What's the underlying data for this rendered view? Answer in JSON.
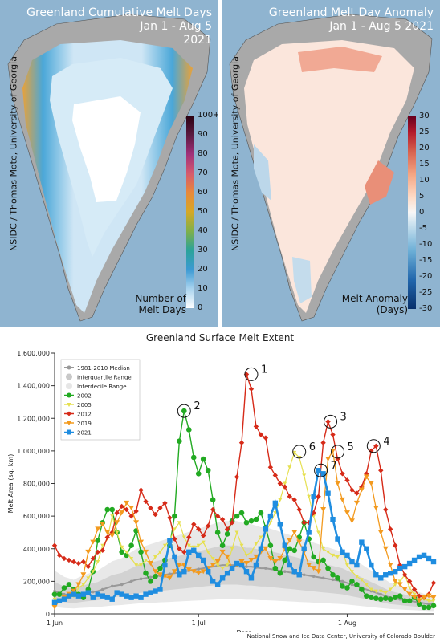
{
  "left_panel": {
    "title_line1": "Greenland Cumulative Melt Days",
    "title_line2": "Jan 1 - Aug 5",
    "title_line3": "2021",
    "credit": "NSIDC / Thomas Mote, University of Georgia",
    "colorbar_ticks": [
      "100+",
      "90",
      "80",
      "70",
      "60",
      "50",
      "40",
      "30",
      "20",
      "10",
      "0"
    ],
    "caption_line1": "Number of",
    "caption_line2": "Melt Days"
  },
  "right_panel": {
    "title_line1": "Greenland Melt Day Anomaly",
    "title_line2": "Jan 1 - Aug 5 2021",
    "credit": "NSIDC / Thomas Mote, University of Georgia",
    "colorbar_ticks": [
      "30",
      "25",
      "20",
      "15",
      "10",
      "5",
      "0",
      "-5",
      "-10",
      "-15",
      "-20",
      "-25",
      "-30"
    ],
    "caption_line1": "Melt Anomaly",
    "caption_line2": "(Days)"
  },
  "colors": {
    "ocean": "#8fb4d0",
    "land": "#a8a8a8",
    "ice": "#e6f2fa",
    "s2002": "#22aa22",
    "s2005": "#e6e050",
    "s2012": "#d62a18",
    "s2019": "#f39a1e",
    "s2021": "#1f8de0",
    "median": "#999999"
  },
  "chart_data": {
    "type": "line",
    "title": "Greenland Surface Melt Extent",
    "xlabel": "Date",
    "ylabel": "Melt Area (sq. km)",
    "ylim": [
      0,
      1600000
    ],
    "yticks": [
      "0",
      "200,000",
      "400,000",
      "600,000",
      "800,000",
      "1,000,000",
      "1,200,000",
      "1,400,000",
      "1,600,000"
    ],
    "xticks": [
      {
        "label": "1 Jun",
        "day": 0
      },
      {
        "label": "1 Jul",
        "day": 30
      },
      {
        "label": "1 Aug",
        "day": 61
      }
    ],
    "xrange": [
      0,
      79
    ],
    "legend": [
      "1981-2010 Median",
      "Interquartile Range",
      "Interdecile Range",
      "2002",
      "2005",
      "2012",
      "2019",
      "2021"
    ],
    "legend_position": "top-left",
    "annotations": [
      {
        "label": "1",
        "day": 41,
        "value": 1470000
      },
      {
        "label": "2",
        "day": 27,
        "value": 1245000
      },
      {
        "label": "3",
        "day": 57.5,
        "value": 1180000
      },
      {
        "label": "4",
        "day": 66.5,
        "value": 1030000
      },
      {
        "label": "5",
        "day": 59,
        "value": 995000
      },
      {
        "label": "6",
        "day": 51,
        "value": 995000
      },
      {
        "label": "7",
        "day": 55.5,
        "value": 880000
      }
    ],
    "source": "National Snow and Ice Data Center, University of Colorado Boulder",
    "median": [
      140000,
      130000,
      120000,
      115000,
      110000,
      118000,
      125000,
      130000,
      135000,
      140000,
      150000,
      160000,
      170000,
      175000,
      180000,
      190000,
      200000,
      210000,
      215000,
      220000,
      225000,
      230000,
      235000,
      240000,
      245000,
      250000,
      255000,
      260000,
      265000,
      270000,
      275000,
      280000,
      285000,
      290000,
      295000,
      300000,
      300000,
      300000,
      300000,
      295000,
      290000,
      290000,
      285000,
      280000,
      280000,
      275000,
      270000,
      265000,
      260000,
      255000,
      250000,
      245000,
      240000,
      235000,
      230000,
      225000,
      220000,
      215000,
      210000,
      205000,
      200000,
      190000,
      180000,
      170000,
      160000,
      150000,
      140000,
      130000,
      120000,
      110000,
      100000,
      95000,
      90000,
      85000,
      80000,
      75000,
      70000,
      65000,
      60000,
      60000
    ],
    "series": [
      {
        "name": "2002",
        "values": [
          120000,
          120000,
          160000,
          180000,
          150000,
          120000,
          100000,
          150000,
          260000,
          450000,
          560000,
          640000,
          640000,
          500000,
          380000,
          360000,
          420000,
          510000,
          380000,
          250000,
          200000,
          230000,
          280000,
          330000,
          420000,
          600000,
          1060000,
          1245000,
          1130000,
          960000,
          860000,
          950000,
          880000,
          700000,
          500000,
          420000,
          490000,
          570000,
          600000,
          620000,
          560000,
          570000,
          580000,
          620000,
          530000,
          420000,
          280000,
          250000,
          330000,
          400000,
          390000,
          470000,
          560000,
          460000,
          350000,
          320000,
          330000,
          280000,
          240000,
          220000,
          170000,
          160000,
          200000,
          180000,
          150000,
          110000,
          100000,
          95000,
          90000,
          95000,
          90000,
          100000,
          110000,
          80000,
          80000,
          100000,
          60000,
          40000,
          40000,
          50000
        ]
      },
      {
        "name": "2005",
        "values": [
          90000,
          80000,
          90000,
          100000,
          110000,
          160000,
          180000,
          220000,
          260000,
          320000,
          420000,
          460000,
          600000,
          500000,
          410000,
          380000,
          340000,
          300000,
          300000,
          330000,
          310000,
          350000,
          380000,
          420000,
          450000,
          520000,
          560000,
          470000,
          420000,
          410000,
          420000,
          440000,
          380000,
          340000,
          300000,
          280000,
          300000,
          400000,
          500000,
          420000,
          360000,
          380000,
          430000,
          470000,
          500000,
          560000,
          620000,
          700000,
          800000,
          900000,
          990000,
          960000,
          850000,
          720000,
          600000,
          500000,
          400000,
          380000,
          360000,
          350000,
          380000,
          300000,
          260000,
          230000,
          210000,
          180000,
          150000,
          140000,
          140000,
          130000,
          150000,
          180000,
          200000,
          240000,
          160000,
          120000,
          100000,
          90000,
          80000,
          80000
        ]
      },
      {
        "name": "2012",
        "values": [
          420000,
          360000,
          340000,
          330000,
          320000,
          310000,
          320000,
          290000,
          340000,
          380000,
          390000,
          470000,
          500000,
          620000,
          660000,
          640000,
          600000,
          630000,
          760000,
          690000,
          650000,
          610000,
          650000,
          680000,
          590000,
          460000,
          400000,
          380000,
          470000,
          550000,
          520000,
          480000,
          540000,
          640000,
          600000,
          580000,
          520000,
          560000,
          840000,
          1050000,
          1470000,
          1380000,
          1150000,
          1100000,
          1080000,
          900000,
          850000,
          800000,
          780000,
          720000,
          700000,
          640000,
          560000,
          560000,
          620000,
          720000,
          1050000,
          1180000,
          1100000,
          950000,
          860000,
          820000,
          760000,
          740000,
          780000,
          860000,
          1000000,
          1030000,
          880000,
          640000,
          520000,
          420000,
          300000,
          240000,
          200000,
          150000,
          110000,
          100000,
          120000,
          190000
        ]
      },
      {
        "name": "2019",
        "values": [
          40000,
          80000,
          100000,
          120000,
          140000,
          180000,
          240000,
          380000,
          440000,
          520000,
          550000,
          500000,
          480000,
          560000,
          620000,
          680000,
          650000,
          560000,
          440000,
          380000,
          310000,
          260000,
          240000,
          230000,
          220000,
          260000,
          300000,
          300000,
          270000,
          260000,
          250000,
          260000,
          280000,
          300000,
          320000,
          380000,
          350000,
          280000,
          300000,
          320000,
          310000,
          330000,
          350000,
          380000,
          400000,
          340000,
          320000,
          340000,
          400000,
          450000,
          500000,
          440000,
          380000,
          300000,
          280000,
          260000,
          640000,
          950000,
          1000000,
          800000,
          700000,
          620000,
          570000,
          680000,
          760000,
          840000,
          800000,
          650000,
          500000,
          400000,
          300000,
          200000,
          180000,
          150000,
          120000,
          100000,
          80000,
          100000,
          110000,
          100000
        ]
      },
      {
        "name": "2021",
        "values": [
          70000,
          80000,
          90000,
          110000,
          120000,
          110000,
          120000,
          130000,
          100000,
          120000,
          110000,
          100000,
          90000,
          130000,
          120000,
          110000,
          100000,
          110000,
          100000,
          120000,
          130000,
          140000,
          150000,
          300000,
          450000,
          350000,
          240000,
          260000,
          380000,
          390000,
          360000,
          330000,
          260000,
          200000,
          180000,
          220000,
          250000,
          280000,
          310000,
          300000,
          260000,
          220000,
          300000,
          400000,
          520000,
          600000,
          680000,
          550000,
          420000,
          300000,
          260000,
          240000,
          400000,
          500000,
          720000,
          880000,
          860000,
          740000,
          580000,
          460000,
          380000,
          360000,
          320000,
          300000,
          440000,
          400000,
          300000,
          240000,
          220000,
          240000,
          250000,
          260000,
          280000,
          290000,
          310000,
          330000,
          350000,
          360000,
          340000,
          320000
        ]
      }
    ]
  }
}
